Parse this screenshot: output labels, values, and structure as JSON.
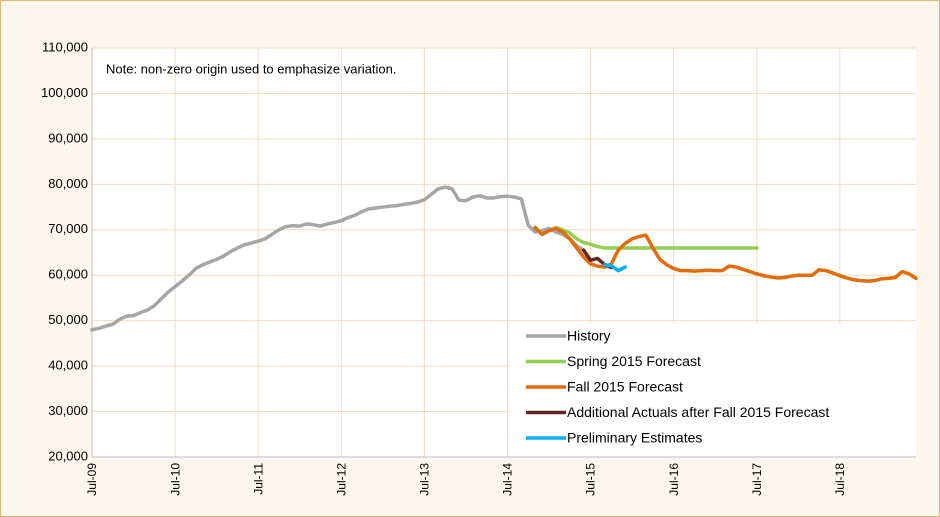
{
  "chart_data": {
    "type": "line",
    "annotation": "Note: non-zero origin used to emphasize variation.",
    "categories": [
      "Jul-09",
      null,
      null,
      null,
      null,
      null,
      null,
      null,
      null,
      null,
      null,
      null,
      "Jul-10",
      null,
      null,
      null,
      null,
      null,
      null,
      null,
      null,
      null,
      null,
      null,
      "Jul-11",
      null,
      null,
      null,
      null,
      null,
      null,
      null,
      null,
      null,
      null,
      null,
      "Jul-12",
      null,
      null,
      null,
      null,
      null,
      null,
      null,
      null,
      null,
      null,
      null,
      "Jul-13",
      null,
      null,
      null,
      null,
      null,
      null,
      null,
      null,
      null,
      null,
      null,
      "Jul-14",
      null,
      null,
      null,
      null,
      null,
      null,
      null,
      null,
      null,
      null,
      null,
      "Jul-15",
      null,
      null,
      null,
      null,
      null,
      null,
      null,
      null,
      null,
      null,
      null,
      "Jul-16",
      null,
      null,
      null,
      null,
      null,
      null,
      null,
      null,
      null,
      null,
      null,
      "Jul-17",
      null,
      null,
      null,
      null,
      null,
      null,
      null,
      null,
      null,
      null,
      null,
      "Jul-18",
      null,
      null,
      null,
      null,
      null,
      null,
      null,
      null,
      null,
      null,
      null
    ],
    "series": [
      {
        "name": "History",
        "color": "#a6a6a6",
        "values": [
          48000,
          48300,
          48800,
          49200,
          50300,
          51000,
          51100,
          51800,
          52300,
          53300,
          54800,
          56300,
          57500,
          58700,
          60000,
          61500,
          62300,
          62900,
          63500,
          64200,
          65200,
          66000,
          66700,
          67100,
          67500,
          68000,
          69000,
          70000,
          70700,
          70900,
          70800,
          71300,
          71100,
          70800,
          71300,
          71600,
          72000,
          72700,
          73200,
          74000,
          74600,
          74800,
          75000,
          75200,
          75300,
          75600,
          75800,
          76100,
          76600,
          77800,
          79000,
          79400,
          79000,
          76500,
          76400,
          77200,
          77500,
          77000,
          77000,
          77300,
          77400,
          77200,
          76800,
          71000,
          69500,
          69800,
          70300,
          69500,
          69000,
          68000,
          66500,
          65500,
          null,
          null,
          null,
          null,
          null,
          null,
          null,
          null,
          null,
          null,
          null,
          null,
          null,
          null,
          null,
          null,
          null,
          null,
          null,
          null,
          null,
          null,
          null,
          null,
          null,
          null,
          null,
          null,
          null,
          null,
          null,
          null,
          null,
          null,
          null,
          null,
          null,
          null,
          null,
          null,
          null,
          null,
          null,
          null,
          null,
          null,
          null,
          null
        ]
      },
      {
        "name": "Spring 2015 Forecast",
        "color": "#92d050",
        "values": [
          null,
          null,
          null,
          null,
          null,
          null,
          null,
          null,
          null,
          null,
          null,
          null,
          null,
          null,
          null,
          null,
          null,
          null,
          null,
          null,
          null,
          null,
          null,
          null,
          null,
          null,
          null,
          null,
          null,
          null,
          null,
          null,
          null,
          null,
          null,
          null,
          null,
          null,
          null,
          null,
          null,
          null,
          null,
          null,
          null,
          null,
          null,
          null,
          null,
          null,
          null,
          null,
          null,
          null,
          null,
          null,
          null,
          null,
          null,
          null,
          null,
          null,
          null,
          null,
          70500,
          69000,
          69800,
          70500,
          70000,
          69300,
          68000,
          67200,
          66800,
          66300,
          66000,
          66000,
          66000,
          66000,
          66000,
          66000,
          66000,
          66000,
          66000,
          66000,
          66000,
          66000,
          66000,
          66000,
          66000,
          66000,
          66000,
          66000,
          66000,
          66000,
          66000,
          66000,
          66000,
          null,
          null,
          null,
          null,
          null,
          null,
          null,
          null,
          null,
          null,
          null,
          null,
          null,
          null,
          null,
          null,
          null,
          null,
          null,
          null,
          null,
          null,
          null
        ]
      },
      {
        "name": "Fall 2015 Forecast",
        "color": "#e36c09",
        "values": [
          null,
          null,
          null,
          null,
          null,
          null,
          null,
          null,
          null,
          null,
          null,
          null,
          null,
          null,
          null,
          null,
          null,
          null,
          null,
          null,
          null,
          null,
          null,
          null,
          null,
          null,
          null,
          null,
          null,
          null,
          null,
          null,
          null,
          null,
          null,
          null,
          null,
          null,
          null,
          null,
          null,
          null,
          null,
          null,
          null,
          null,
          null,
          null,
          null,
          null,
          null,
          null,
          null,
          null,
          null,
          null,
          null,
          null,
          null,
          null,
          null,
          null,
          null,
          null,
          70500,
          69000,
          69800,
          70300,
          69500,
          68000,
          66000,
          64000,
          62500,
          62000,
          61800,
          62500,
          65500,
          67000,
          68000,
          68500,
          68800,
          66000,
          63500,
          62300,
          61500,
          61000,
          61000,
          60900,
          61000,
          61100,
          61000,
          61000,
          62000,
          61800,
          61300,
          60800,
          60300,
          59900,
          59600,
          59400,
          59500,
          59800,
          60000,
          60000,
          60000,
          61200,
          61000,
          60500,
          59900,
          59400,
          59000,
          58800,
          58700,
          58800,
          59200,
          59300,
          59500,
          60800,
          60300,
          59300
        ]
      },
      {
        "name": "Additional Actuals after Fall 2015 Forecast",
        "color": "#632523",
        "values": [
          null,
          null,
          null,
          null,
          null,
          null,
          null,
          null,
          null,
          null,
          null,
          null,
          null,
          null,
          null,
          null,
          null,
          null,
          null,
          null,
          null,
          null,
          null,
          null,
          null,
          null,
          null,
          null,
          null,
          null,
          null,
          null,
          null,
          null,
          null,
          null,
          null,
          null,
          null,
          null,
          null,
          null,
          null,
          null,
          null,
          null,
          null,
          null,
          null,
          null,
          null,
          null,
          null,
          null,
          null,
          null,
          null,
          null,
          null,
          null,
          null,
          null,
          null,
          null,
          null,
          null,
          null,
          null,
          null,
          null,
          null,
          65500,
          63300,
          63700,
          62400,
          61700,
          null,
          null,
          null,
          null,
          null,
          null,
          null,
          null,
          null,
          null,
          null,
          null,
          null,
          null,
          null,
          null,
          null,
          null,
          null,
          null,
          null,
          null,
          null,
          null,
          null,
          null,
          null,
          null,
          null,
          null,
          null,
          null,
          null,
          null,
          null,
          null,
          null,
          null,
          null,
          null,
          null,
          null,
          null,
          null
        ]
      },
      {
        "name": "Preliminary Estimates",
        "color": "#00b0f0",
        "values": [
          null,
          null,
          null,
          null,
          null,
          null,
          null,
          null,
          null,
          null,
          null,
          null,
          null,
          null,
          null,
          null,
          null,
          null,
          null,
          null,
          null,
          null,
          null,
          null,
          null,
          null,
          null,
          null,
          null,
          null,
          null,
          null,
          null,
          null,
          null,
          null,
          null,
          null,
          null,
          null,
          null,
          null,
          null,
          null,
          null,
          null,
          null,
          null,
          null,
          null,
          null,
          null,
          null,
          null,
          null,
          null,
          null,
          null,
          null,
          null,
          null,
          null,
          null,
          null,
          null,
          null,
          null,
          null,
          null,
          null,
          null,
          null,
          null,
          null,
          62300,
          62100,
          61000,
          61800,
          null,
          null,
          null,
          null,
          null,
          null,
          null,
          null,
          null,
          null,
          null,
          null,
          null,
          null,
          null,
          null,
          null,
          null,
          null,
          null,
          null,
          null,
          null,
          null,
          null,
          null,
          null,
          null,
          null,
          null,
          null,
          null,
          null,
          null,
          null,
          null,
          null,
          null,
          null,
          null,
          null,
          null
        ]
      }
    ],
    "ylim": [
      20000,
      110000
    ],
    "yticks": [
      {
        "value": 20000,
        "label": "20,000"
      },
      {
        "value": 30000,
        "label": "30,000"
      },
      {
        "value": 40000,
        "label": "40,000"
      },
      {
        "value": 50000,
        "label": "50,000"
      },
      {
        "value": 60000,
        "label": "60,000"
      },
      {
        "value": 70000,
        "label": "70,000"
      },
      {
        "value": 80000,
        "label": "80,000"
      },
      {
        "value": 90000,
        "label": "90,000"
      },
      {
        "value": 100000,
        "label": "100,000"
      },
      {
        "value": 110000,
        "label": "110,000"
      }
    ],
    "grid": true,
    "legend": "lower right"
  }
}
